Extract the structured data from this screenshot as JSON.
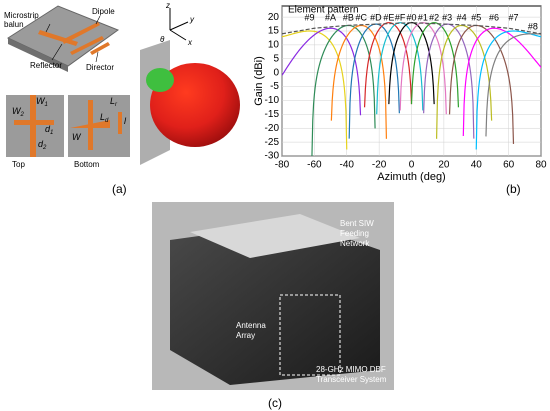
{
  "panel_a": {
    "label": "(a)",
    "callouts": [
      "Microstrip",
      "balun",
      "Dipole",
      "Reflector",
      "Director"
    ],
    "views": [
      "Top",
      "Bottom"
    ],
    "dimensions": [
      {
        "base": "W",
        "sub": "1"
      },
      {
        "base": "W",
        "sub": "2"
      },
      {
        "base": "d",
        "sub": "1"
      },
      {
        "base": "d",
        "sub": "2"
      },
      {
        "base": "L",
        "sub": "r"
      },
      {
        "base": "L",
        "sub": "d"
      },
      {
        "base": "W",
        "sub": ""
      },
      {
        "base": "l",
        "sub": ""
      }
    ],
    "axes": [
      "z",
      "y",
      "x",
      "θ"
    ]
  },
  "chart_data": {
    "type": "line",
    "label": "(b)",
    "xlabel": "Azimuth (deg)",
    "ylabel": "Gain (dBi)",
    "xlim": [
      -80,
      80
    ],
    "xticks": [
      -80,
      -60,
      -40,
      -20,
      0,
      20,
      40,
      60,
      80
    ],
    "ylim": [
      -30,
      24
    ],
    "yticks": [
      -30,
      -25,
      -20,
      -15,
      -10,
      -5,
      0,
      5,
      10,
      15,
      20
    ],
    "grid": true,
    "element_pattern": {
      "name": "Element pattern",
      "color": "#555555",
      "x": [
        -80,
        -60,
        -40,
        -20,
        0,
        20,
        40,
        60,
        80
      ],
      "values": [
        14,
        16,
        17,
        17.5,
        18,
        17.5,
        17,
        16,
        14
      ]
    },
    "beams": [
      {
        "name": "#9",
        "peak_x": -63,
        "peak": 15,
        "color": "#e6d21c"
      },
      {
        "name": "#A",
        "peak_x": -50,
        "peak": 16,
        "color": "#8a2be2"
      },
      {
        "name": "#B",
        "peak_x": -39,
        "peak": 17,
        "color": "#2e8b57"
      },
      {
        "name": "#C",
        "peak_x": -31,
        "peak": 17,
        "color": "#ff7f0e"
      },
      {
        "name": "#D",
        "peak_x": -22,
        "peak": 17.5,
        "color": "#1f77b4"
      },
      {
        "name": "#E",
        "peak_x": -14,
        "peak": 18,
        "color": "#d62728"
      },
      {
        "name": "#F",
        "peak_x": -7,
        "peak": 18,
        "color": "#17becf"
      },
      {
        "name": "#0",
        "peak_x": 0,
        "peak": 18,
        "color": "#000000"
      },
      {
        "name": "#1",
        "peak_x": 7,
        "peak": 18,
        "color": "#e377c2"
      },
      {
        "name": "#2",
        "peak_x": 14,
        "peak": 18,
        "color": "#2ca02c"
      },
      {
        "name": "#3",
        "peak_x": 22,
        "peak": 17.5,
        "color": "#9467bd"
      },
      {
        "name": "#4",
        "peak_x": 31,
        "peak": 17,
        "color": "#bcbd22"
      },
      {
        "name": "#5",
        "peak_x": 40,
        "peak": 17,
        "color": "#8c564b"
      },
      {
        "name": "#6",
        "peak_x": 51,
        "peak": 16,
        "color": "#ff00ff"
      },
      {
        "name": "#7",
        "peak_x": 63,
        "peak": 15,
        "color": "#00bfff"
      },
      {
        "name": "#8",
        "peak_x": 75,
        "peak": 14,
        "color": "#7f7f7f"
      }
    ]
  },
  "panel_c": {
    "label": "(c)",
    "feeding_label": [
      "Bent SIW",
      "Feeding",
      "Network"
    ],
    "array_label": [
      "Antenna",
      "Array"
    ],
    "system_label": [
      "28-GHz MIMO DBF",
      "Transceiver System"
    ]
  }
}
